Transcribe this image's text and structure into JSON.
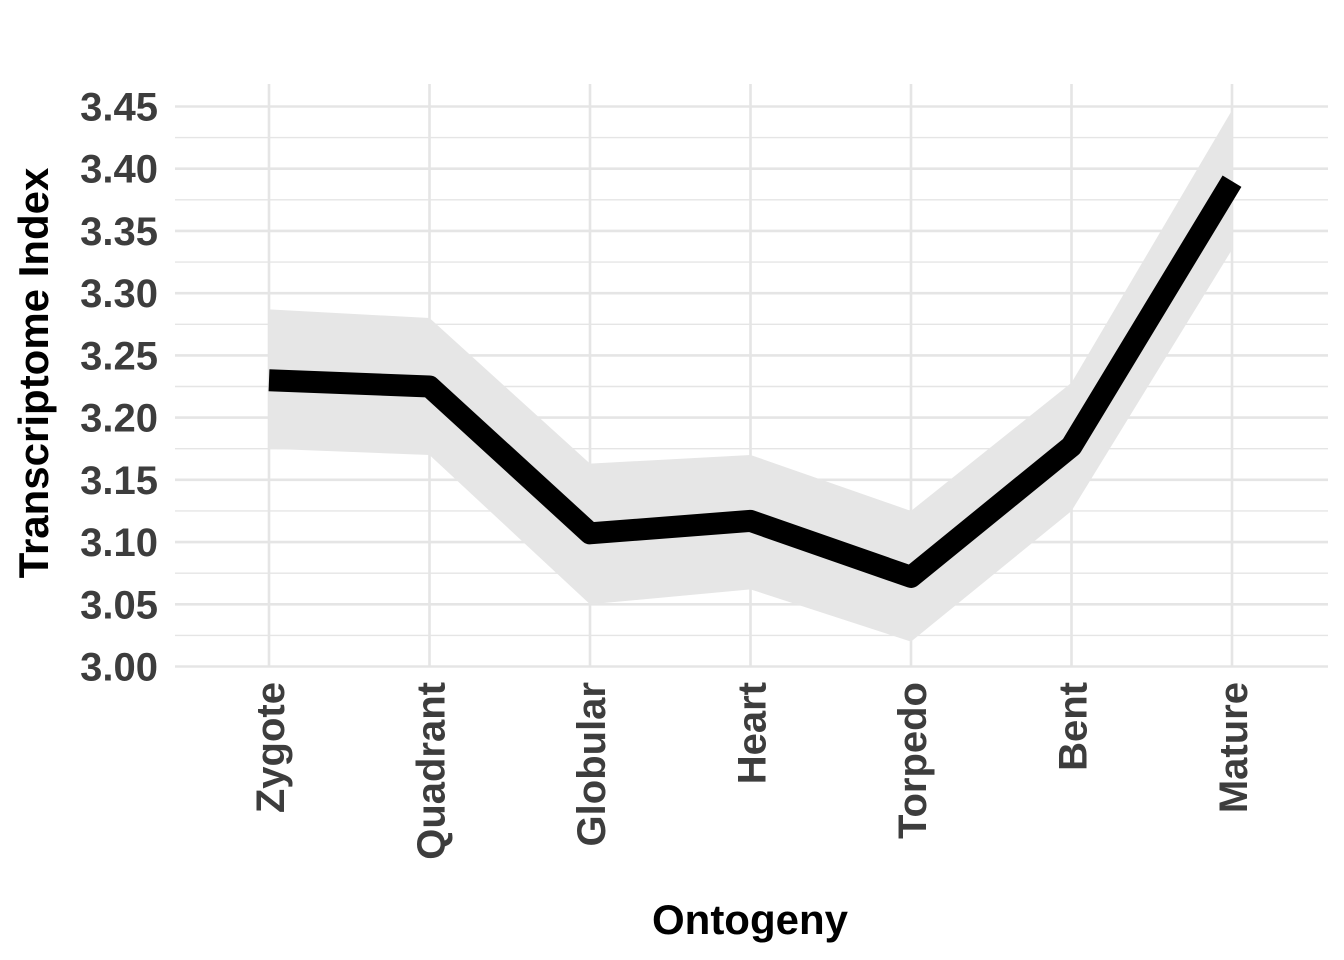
{
  "chart_data": {
    "type": "line",
    "title": "",
    "xlabel": "Ontogeny",
    "ylabel": "Transcriptome Index",
    "categories": [
      "Zygote",
      "Quadrant",
      "Globular",
      "Heart",
      "Torpedo",
      "Bent",
      "Mature"
    ],
    "series": [
      {
        "values": [
          3.23,
          3.225,
          3.107,
          3.117,
          3.072,
          3.177,
          3.39
        ],
        "ribbon_lower": [
          3.175,
          3.17,
          3.05,
          3.062,
          3.02,
          3.125,
          3.335
        ],
        "ribbon_upper": [
          3.287,
          3.28,
          3.163,
          3.17,
          3.125,
          3.228,
          3.447
        ]
      }
    ],
    "ylim": [
      3.0,
      3.46
    ],
    "yticks": [
      "3.00",
      "3.05",
      "3.10",
      "3.15",
      "3.20",
      "3.25",
      "3.30",
      "3.35",
      "3.40",
      "3.45"
    ],
    "grid": true,
    "legend": "none",
    "colors": {
      "line": "#000000",
      "ribbon": "#e6e6e6",
      "grid": "#e5e5e5",
      "tick_text": "#3d3d3d"
    }
  }
}
